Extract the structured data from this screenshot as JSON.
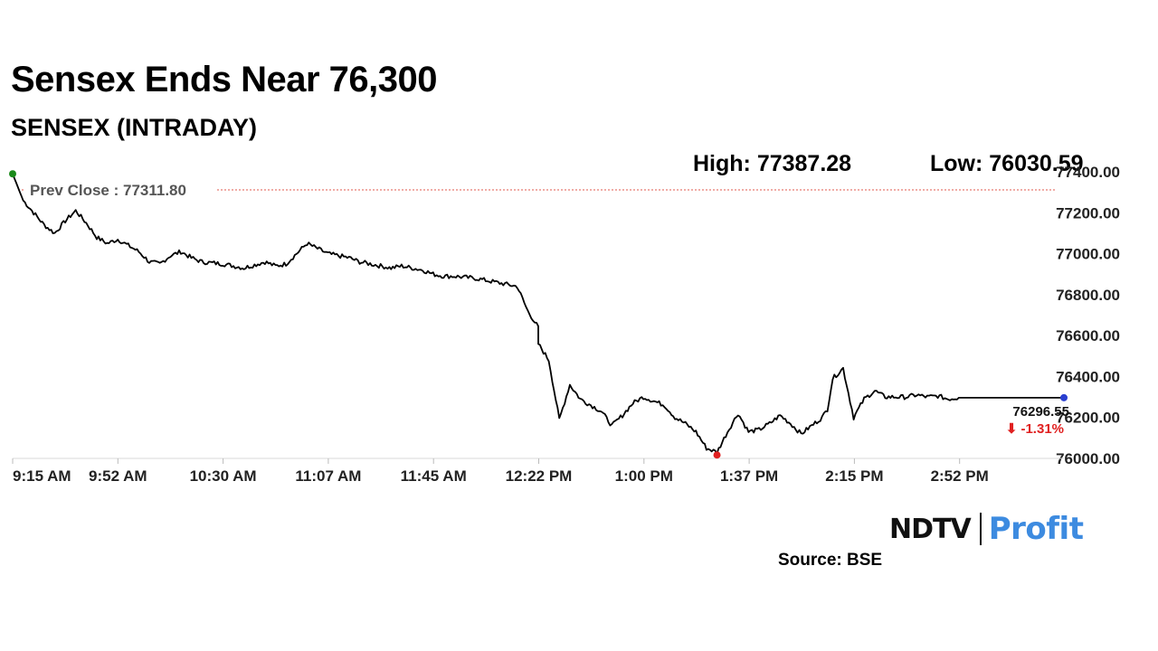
{
  "header": {
    "title": "Sensex Ends Near 76,300",
    "subtitle": "SENSEX (INTRADAY)"
  },
  "stats": {
    "high_text": "High: 77387.28",
    "low_text": "Low: 76030.59"
  },
  "footer": {
    "source": "Source: BSE",
    "logo_left": "NDTV",
    "logo_right": "Profit"
  },
  "chart_data": {
    "type": "line",
    "title": "SENSEX (INTRADAY)",
    "ylim": [
      76000,
      77400
    ],
    "yticks": [
      "77400.00",
      "77200.00",
      "77000.00",
      "76800.00",
      "76600.00",
      "76400.00",
      "76200.00",
      "76000.00"
    ],
    "ytick_values": [
      77400,
      77200,
      77000,
      76800,
      76600,
      76400,
      76200,
      76000
    ],
    "xticks": [
      "9:15 AM",
      "9:52 AM",
      "10:30 AM",
      "11:07 AM",
      "11:45 AM",
      "12:22 PM",
      "1:00 PM",
      "1:37 PM",
      "2:15 PM",
      "2:52 PM"
    ],
    "grid": false,
    "prev_close": {
      "label": "Prev Close : 77311.80",
      "value": 77311.8
    },
    "last": {
      "value_text": "76296.55",
      "change_text": "⬇ -1.31%"
    },
    "colors": {
      "line": "#000000",
      "prev_close_line": "#e05a4e",
      "start_marker": "#1a8a1a",
      "low_marker": "#e02020",
      "end_marker": "#2a3fd0",
      "change_text": "#e02020",
      "logo_profit": "#3d8be0"
    },
    "series": [
      {
        "x": [
          0,
          0.01,
          0.02,
          0.03,
          0.04,
          0.05,
          0.06,
          0.07,
          0.08,
          0.09,
          0.1,
          0.11,
          0.12,
          0.13,
          0.14,
          0.15,
          0.16,
          0.17,
          0.18,
          0.2,
          0.22,
          0.24,
          0.25,
          0.26,
          0.27,
          0.28,
          0.3,
          0.32,
          0.33,
          0.34,
          0.35,
          0.36,
          0.37,
          0.38,
          0.39,
          0.4,
          0.41,
          0.42,
          0.44,
          0.46,
          0.48,
          0.49,
          0.5,
          0.5,
          0.51,
          0.52,
          0.53,
          0.54,
          0.56,
          0.57,
          0.58,
          0.59,
          0.6,
          0.62,
          0.63,
          0.64,
          0.65,
          0.66,
          0.67,
          0.68,
          0.69,
          0.7,
          0.71,
          0.72,
          0.73,
          0.74,
          0.75,
          0.76,
          0.77,
          0.775,
          0.78,
          0.79,
          0.8,
          0.81,
          0.82,
          0.83,
          0.84,
          0.85,
          0.86,
          0.87,
          0.88,
          0.89,
          0.9,
          0.9,
          0.905,
          0.91,
          0.92,
          0.93,
          0.94,
          0.95,
          0.96,
          0.97,
          0.98,
          0.99,
          1.0
        ],
        "y": [
          77390,
          77260,
          77200,
          77140,
          77100,
          77160,
          77210,
          77150,
          77080,
          77050,
          77070,
          77040,
          77010,
          76960,
          76950,
          76990,
          77010,
          76980,
          76960,
          76950,
          76930,
          76960,
          76940,
          76950,
          77000,
          77050,
          77000,
          76980,
          76960,
          76950,
          76940,
          76930,
          76940,
          76930,
          76920,
          76900,
          76890,
          76890,
          76880,
          76860,
          76840,
          76720,
          76640,
          76560,
          76480,
          76190,
          76360,
          76290,
          76230,
          76160,
          76210,
          76270,
          76300,
          76260,
          76200,
          76170,
          76130,
          76050,
          76030,
          76130,
          76220,
          76130,
          76140,
          76170,
          76210,
          76170,
          76120,
          76160,
          76200,
          76240,
          76390,
          76440,
          76200,
          76290,
          76330,
          76300,
          76300,
          76300,
          76310,
          76300,
          76305,
          76290,
          76296.55,
          76296.55,
          76296.55,
          76296.55,
          76296.55,
          76296.55,
          76296.55,
          76296.55,
          76296.55,
          76296.55,
          76296.55,
          76296.55,
          76296.55
        ]
      }
    ]
  }
}
